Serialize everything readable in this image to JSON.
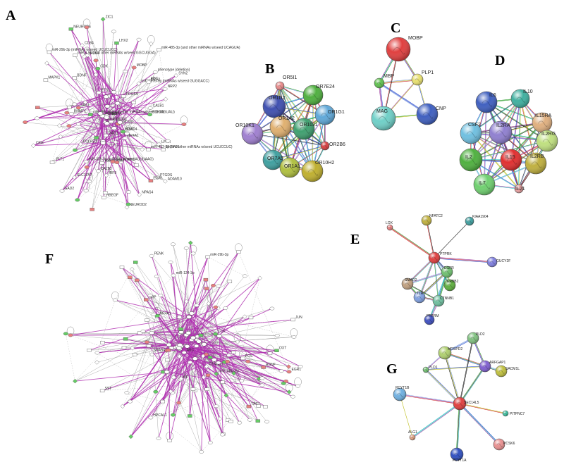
{
  "panels": {
    "A": {
      "letter": "A",
      "labels": [
        "CALB2",
        "CALB1",
        "ETS1",
        "PDGFA",
        "miR-497b-5p (miRNAs w/seed GUGGACC)",
        "miR-29b-3p (miRNAs w/seed UCUCUCC)",
        "NDRG1",
        "LPPR",
        "NPAS4",
        "TAC1",
        "miR-338-3p (miRNAs w/seed AUUUAAG)",
        "miR-432-5p (and other miRNAs w/seed UCUCCUC)",
        "miR-485-3p (and other miRNAs w/seed UCAGUA)",
        "miR-155-5p (and other miRNAs w/seed GGAGUAU)",
        "IRF8",
        "CD84",
        "miR-9-5p (and other miRNAs w/seed GGCUGGA)",
        "PTGDS",
        "NR4A1",
        "CDK",
        "NEUROD2",
        "COL3A1",
        "Calcium",
        "NTRK1",
        "DCLRE1",
        "CTSB",
        "BDKRB",
        "HDAC4",
        "ADC",
        "phenotype (deletion)",
        "DNMT1",
        "OTX1",
        "HBEGF",
        "NEUROD6",
        "GAD2",
        "SYN2",
        "CDX1",
        "GAD1",
        "NRP2",
        "NOS1",
        "MOBP",
        "ADAM10",
        "FLT1",
        "VEGFA",
        "CRH",
        "Vasopressin",
        "ZIC1",
        "LHX2",
        "BDNF",
        "EGR1",
        "KCNK9",
        "ENTPD1",
        "SLC17A7",
        "MAPK1"
      ]
    },
    "B": {
      "letter": "B",
      "nodes": [
        "OR5I1",
        "OR7E24",
        "OR1D2",
        "OR1G1",
        "OR10K1",
        "OR1A2",
        "OR10J1",
        "OR2B6",
        "OR7A5",
        "OR1A1",
        "OR10H2"
      ]
    },
    "C": {
      "letter": "C",
      "nodes": [
        "MOBP",
        "MBP",
        "PLP1",
        "MAG",
        "CNP"
      ]
    },
    "D": {
      "letter": "D",
      "nodes": [
        "IL6",
        "IL10",
        "IL15RA",
        "CSF2",
        "IL2RA",
        "IL2RG",
        "IL2",
        "IL15",
        "IL2RB",
        "IL7",
        "IL21"
      ]
    },
    "E": {
      "letter": "E",
      "nodes": [
        "LOX",
        "NFATC2",
        "KIAA1904",
        "PTPRK",
        "GUCY2F",
        "EGFR",
        "SMAD2",
        "ERBB2",
        "TLR",
        "CTNNB1",
        "PTPRM"
      ]
    },
    "F": {
      "letter": "F",
      "labels": [
        "HPCAL1",
        "CTNNB1",
        "OXT",
        "SST",
        "VIP",
        "NPY",
        "CCK",
        "TAC1",
        "GRP",
        "PENK",
        "miR-146a-5p",
        "miR-29b-3p",
        "miR-124-3p",
        "BDNF",
        "EGR1",
        "FOS",
        "JUN",
        "ARC",
        "NR4A1",
        "NPAS4"
      ]
    },
    "G": {
      "letter": "G",
      "nodes": [
        "PLD2",
        "MOSPD2",
        "ARFGAP1",
        "SACM1L",
        "PLD1",
        "PCYT1B",
        "SEC14L5",
        "PITPNC7",
        "ALG1",
        "PCYT1A",
        "PCSK6"
      ]
    }
  },
  "colors": {
    "mirna_edge": "#b030b0",
    "gray_edge": "#666666",
    "up_node": "#e88080",
    "down_node": "#66cc66",
    "string_red": "#e03030",
    "string_green": "#3aa040",
    "string_blue": "#3060d0",
    "string_cyan": "#30b8c8",
    "string_yellow": "#c8c020",
    "string_purple": "#8060c0"
  }
}
